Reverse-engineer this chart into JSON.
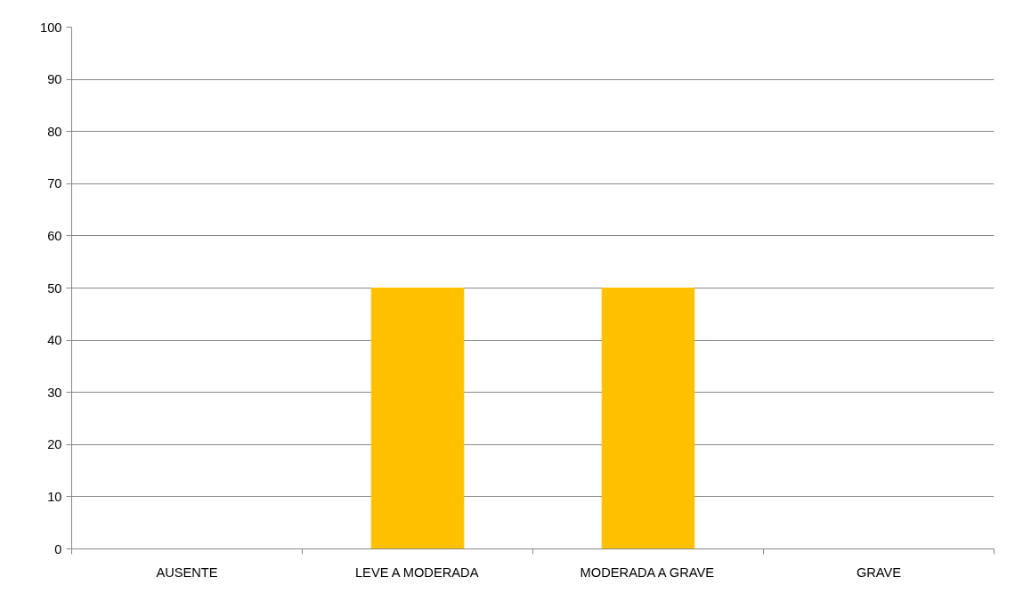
{
  "chart_data": {
    "type": "bar",
    "categories": [
      "AUSENTE",
      "LEVE A MODERADA",
      "MODERADA A GRAVE",
      "GRAVE"
    ],
    "values": [
      0,
      50,
      50,
      0
    ],
    "color": "#ffc000",
    "ylim": [
      0,
      100
    ],
    "yticks": [
      0,
      10,
      20,
      30,
      40,
      50,
      60,
      70,
      80,
      90,
      100
    ],
    "grid": "y"
  }
}
